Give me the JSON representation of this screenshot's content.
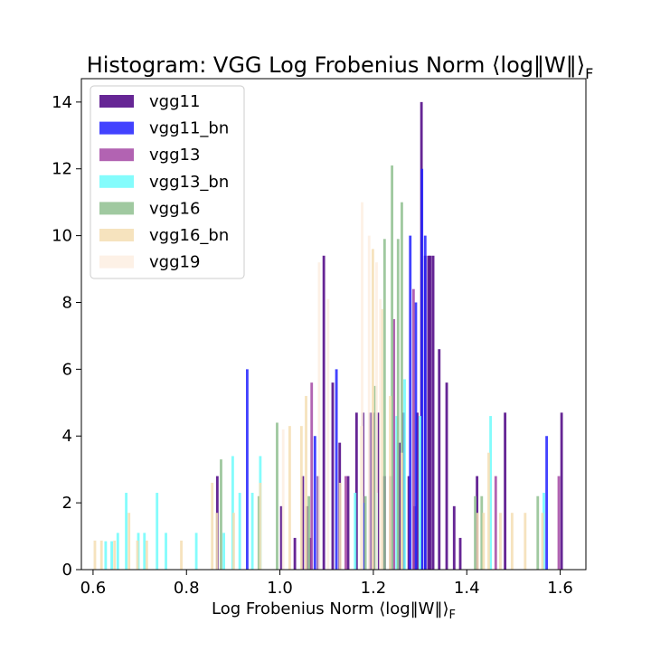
{
  "chart_data": {
    "type": "bar",
    "title": "Histogram: VGG Log Frobenius Norm ⟨log‖W‖⟩F",
    "title_main": "Histogram: VGG Log Frobenius Norm ⟨log‖W‖⟩",
    "title_sub": "F",
    "xlabel": "Log Frobenius Norm ⟨log‖W‖⟩F",
    "xlabel_main": "Log Frobenius Norm ⟨log‖W‖⟩",
    "xlabel_sub": "F",
    "ylabel": "",
    "xlim": [
      0.575,
      1.655
    ],
    "ylim": [
      0,
      14.7
    ],
    "xticks": [
      "0.6",
      "0.8",
      "1.0",
      "1.2",
      "1.4",
      "1.6"
    ],
    "xtick_values": [
      0.6,
      0.8,
      1.0,
      1.2,
      1.4,
      1.6
    ],
    "yticks": [
      "0",
      "2",
      "4",
      "6",
      "8",
      "10",
      "12",
      "14"
    ],
    "ytick_values": [
      0,
      2,
      4,
      6,
      8,
      10,
      12,
      14
    ],
    "grid": false,
    "legend_position": "top-left",
    "bar_width": 0.0055,
    "series": [
      {
        "name": "vgg11",
        "color": "#4b0082",
        "bars": [
          {
            "x": 0.866,
            "y": 2.8
          },
          {
            "x": 1.003,
            "y": 1.9
          },
          {
            "x": 1.032,
            "y": 0.95
          },
          {
            "x": 1.049,
            "y": 2.8
          },
          {
            "x": 1.058,
            "y": 1.9
          },
          {
            "x": 1.065,
            "y": 0.95
          },
          {
            "x": 1.082,
            "y": 2.8
          },
          {
            "x": 1.094,
            "y": 9.4
          },
          {
            "x": 1.113,
            "y": 5.6
          },
          {
            "x": 1.128,
            "y": 3.8
          },
          {
            "x": 1.146,
            "y": 2.8
          },
          {
            "x": 1.164,
            "y": 4.7
          },
          {
            "x": 1.178,
            "y": 4.7
          },
          {
            "x": 1.193,
            "y": 4.7
          },
          {
            "x": 1.201,
            "y": 4.7
          },
          {
            "x": 1.21,
            "y": 4.7
          },
          {
            "x": 1.224,
            "y": 2.8
          },
          {
            "x": 1.237,
            "y": 2.8
          },
          {
            "x": 1.256,
            "y": 3.8
          },
          {
            "x": 1.265,
            "y": 4.7
          },
          {
            "x": 1.276,
            "y": 2.8
          },
          {
            "x": 1.288,
            "y": 1.9
          },
          {
            "x": 1.294,
            "y": 4.7
          },
          {
            "x": 1.303,
            "y": 14.0
          },
          {
            "x": 1.311,
            "y": 9.4
          },
          {
            "x": 1.318,
            "y": 9.4
          },
          {
            "x": 1.322,
            "y": 9.4
          },
          {
            "x": 1.328,
            "y": 9.4
          },
          {
            "x": 1.341,
            "y": 6.6
          },
          {
            "x": 1.357,
            "y": 5.6
          },
          {
            "x": 1.373,
            "y": 1.9
          },
          {
            "x": 1.386,
            "y": 0.95
          },
          {
            "x": 1.422,
            "y": 2.8
          },
          {
            "x": 1.482,
            "y": 4.7
          },
          {
            "x": 1.603,
            "y": 4.7
          }
        ]
      },
      {
        "name": "vgg11_bn",
        "color": "#2121ff",
        "bars": [
          {
            "x": 0.93,
            "y": 6.0
          },
          {
            "x": 1.075,
            "y": 4.0
          },
          {
            "x": 1.121,
            "y": 6.0
          },
          {
            "x": 1.179,
            "y": 2.0
          },
          {
            "x": 1.279,
            "y": 10.0
          },
          {
            "x": 1.291,
            "y": 8.0
          },
          {
            "x": 1.304,
            "y": 12.0
          },
          {
            "x": 1.311,
            "y": 10.0
          },
          {
            "x": 1.571,
            "y": 4.0
          }
        ]
      },
      {
        "name": "vgg13",
        "color": "#a548a5",
        "bars": [
          {
            "x": 1.068,
            "y": 5.6
          },
          {
            "x": 1.141,
            "y": 2.8
          },
          {
            "x": 1.244,
            "y": 7.5
          },
          {
            "x": 1.286,
            "y": 8.4
          },
          {
            "x": 1.462,
            "y": 2.8
          },
          {
            "x": 1.597,
            "y": 2.8
          }
        ]
      },
      {
        "name": "vgg13_bn",
        "color": "#6ffcfc",
        "bars": [
          {
            "x": 0.627,
            "y": 0.85
          },
          {
            "x": 0.64,
            "y": 0.85
          },
          {
            "x": 0.653,
            "y": 1.1
          },
          {
            "x": 0.671,
            "y": 2.3
          },
          {
            "x": 0.697,
            "y": 1.1
          },
          {
            "x": 0.71,
            "y": 1.1
          },
          {
            "x": 0.737,
            "y": 2.3
          },
          {
            "x": 0.756,
            "y": 1.1
          },
          {
            "x": 0.821,
            "y": 1.1
          },
          {
            "x": 0.88,
            "y": 1.1
          },
          {
            "x": 0.899,
            "y": 3.4
          },
          {
            "x": 0.914,
            "y": 2.3
          },
          {
            "x": 0.941,
            "y": 2.3
          },
          {
            "x": 0.958,
            "y": 3.4
          },
          {
            "x": 1.161,
            "y": 2.3
          },
          {
            "x": 1.207,
            "y": 2.3
          },
          {
            "x": 1.25,
            "y": 4.6
          },
          {
            "x": 1.267,
            "y": 5.7
          },
          {
            "x": 1.3,
            "y": 4.6
          },
          {
            "x": 1.451,
            "y": 4.6
          },
          {
            "x": 1.565,
            "y": 2.3
          }
        ]
      },
      {
        "name": "vgg16",
        "color": "#8fbf8f",
        "bars": [
          {
            "x": 0.874,
            "y": 3.3
          },
          {
            "x": 0.955,
            "y": 2.2
          },
          {
            "x": 0.994,
            "y": 4.4
          },
          {
            "x": 1.062,
            "y": 2.2
          },
          {
            "x": 1.183,
            "y": 2.2
          },
          {
            "x": 1.204,
            "y": 5.5
          },
          {
            "x": 1.224,
            "y": 9.9
          },
          {
            "x": 1.24,
            "y": 12.1
          },
          {
            "x": 1.253,
            "y": 9.9
          },
          {
            "x": 1.261,
            "y": 11.0
          },
          {
            "x": 1.418,
            "y": 2.2
          },
          {
            "x": 1.432,
            "y": 2.2
          },
          {
            "x": 1.552,
            "y": 2.2
          }
        ]
      },
      {
        "name": "vgg16_bn",
        "color": "#f5deb3",
        "bars": [
          {
            "x": 0.604,
            "y": 0.87
          },
          {
            "x": 0.618,
            "y": 0.87
          },
          {
            "x": 0.646,
            "y": 0.87
          },
          {
            "x": 0.677,
            "y": 1.7
          },
          {
            "x": 0.695,
            "y": 0.87
          },
          {
            "x": 0.715,
            "y": 0.87
          },
          {
            "x": 0.789,
            "y": 0.87
          },
          {
            "x": 0.855,
            "y": 2.6
          },
          {
            "x": 0.865,
            "y": 1.7
          },
          {
            "x": 0.901,
            "y": 1.7
          },
          {
            "x": 0.958,
            "y": 2.6
          },
          {
            "x": 1.021,
            "y": 4.3
          },
          {
            "x": 1.046,
            "y": 4.3
          },
          {
            "x": 1.056,
            "y": 5.2
          },
          {
            "x": 1.129,
            "y": 2.6
          },
          {
            "x": 1.175,
            "y": 4.3
          },
          {
            "x": 1.199,
            "y": 9.6
          },
          {
            "x": 1.218,
            "y": 7.8
          },
          {
            "x": 1.236,
            "y": 5.2
          },
          {
            "x": 1.261,
            "y": 3.5
          },
          {
            "x": 1.423,
            "y": 1.7
          },
          {
            "x": 1.436,
            "y": 1.7
          },
          {
            "x": 1.447,
            "y": 3.5
          },
          {
            "x": 1.472,
            "y": 1.7
          },
          {
            "x": 1.497,
            "y": 1.7
          },
          {
            "x": 1.525,
            "y": 1.7
          },
          {
            "x": 1.562,
            "y": 1.7
          }
        ]
      },
      {
        "name": "vgg19",
        "color": "#fdefe2",
        "bars": [
          {
            "x": 1.007,
            "y": 4.2
          },
          {
            "x": 1.084,
            "y": 9.2
          },
          {
            "x": 1.103,
            "y": 8.1
          },
          {
            "x": 1.176,
            "y": 11.0
          },
          {
            "x": 1.191,
            "y": 10.0
          },
          {
            "x": 1.207,
            "y": 9.2
          },
          {
            "x": 1.215,
            "y": 8.1
          }
        ]
      }
    ]
  }
}
